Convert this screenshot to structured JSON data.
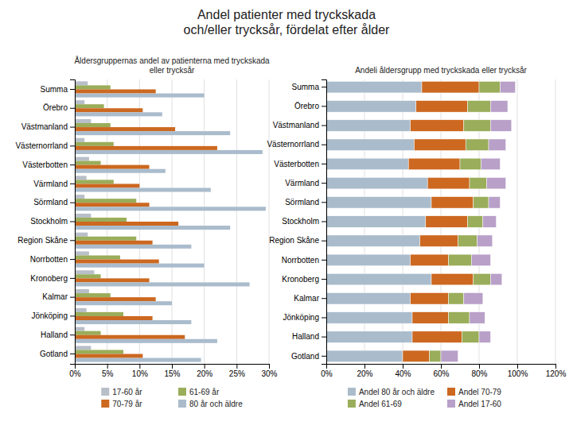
{
  "title": "Andel patienter med tryckskada\noch/eller trycksår, fördelat efter ålder",
  "chart_data": [
    {
      "type": "bar",
      "orientation": "horizontal",
      "grid": true,
      "legend": "bottom",
      "title": "Åldersgruppernas andel av patienterna med tryckskada\neller trycksår",
      "categories": [
        "Summa",
        "Örebro",
        "Västmanland",
        "Västernorrland",
        "Västerbotten",
        "Värmland",
        "Sörmland",
        "Stockholm",
        "Region Skåne",
        "Norrbotten",
        "Kronoberg",
        "Kalmar",
        "Jönköping",
        "Halland",
        "Gotland"
      ],
      "xlim": [
        0,
        30
      ],
      "xticks": [
        {
          "value": 0,
          "label": "0%"
        },
        {
          "value": 5,
          "label": "5%"
        },
        {
          "value": 10,
          "label": "10%"
        },
        {
          "value": 15,
          "label": "15%"
        },
        {
          "value": 20,
          "label": "20%"
        },
        {
          "value": 25,
          "label": "25%"
        },
        {
          "value": 30,
          "label": "30%"
        }
      ],
      "series": [
        {
          "name": "17-60 år",
          "color": "#b8bfc8",
          "values": [
            2.0,
            1.5,
            2.5,
            1.5,
            2.2,
            1.8,
            1.5,
            2.5,
            2.0,
            2.2,
            3.0,
            2.2,
            1.8,
            1.5,
            2.5
          ]
        },
        {
          "name": "61-69 år",
          "color": "#9aad5a",
          "values": [
            5.5,
            4.5,
            5.5,
            6.0,
            4.0,
            6.0,
            9.5,
            8.0,
            9.5,
            7.0,
            4.0,
            5.5,
            7.5,
            4.0,
            7.5
          ]
        },
        {
          "name": "70-79 år",
          "color": "#cc6820",
          "values": [
            12.5,
            10.5,
            15.5,
            22.0,
            11.5,
            10.0,
            11.5,
            16.0,
            12.0,
            13.0,
            11.5,
            12.5,
            12.0,
            17.0,
            10.5
          ]
        },
        {
          "name": "80 år och äldre",
          "color": "#aabccc",
          "values": [
            20.0,
            13.5,
            24.0,
            29.0,
            14.0,
            21.0,
            29.5,
            24.0,
            18.0,
            20.0,
            27.0,
            15.0,
            18.0,
            22.0,
            19.5
          ]
        }
      ]
    },
    {
      "type": "bar",
      "orientation": "horizontal",
      "stacked": true,
      "grid": true,
      "legend": "bottom",
      "title": "Andeli åldersgrupp med tryckskada eller trycksår",
      "categories": [
        "Summa",
        "Örebro",
        "Västmanland",
        "Västernorrland",
        "Västerbotten",
        "Värmland",
        "Sörmland",
        "Stockholm",
        "Region Skåne",
        "Norrbotten",
        "Kronoberg",
        "Kalmar",
        "Jönköping",
        "Halland",
        "Gotland"
      ],
      "xlim": [
        0,
        120
      ],
      "xticks": [
        {
          "value": 0,
          "label": "0%"
        },
        {
          "value": 20,
          "label": "20%"
        },
        {
          "value": 40,
          "label": "40%"
        },
        {
          "value": 60,
          "label": "60%"
        },
        {
          "value": 80,
          "label": "80%"
        },
        {
          "value": 100,
          "label": "100%"
        },
        {
          "value": 120,
          "label": "120%"
        }
      ],
      "series": [
        {
          "name": "Andel 80 år och äldre",
          "color": "#aabccc",
          "values": [
            50.0,
            47.0,
            44.0,
            46.0,
            43.0,
            53.0,
            55.0,
            52.0,
            49.0,
            44.0,
            55.0,
            44.0,
            45.0,
            45.0,
            40.0
          ]
        },
        {
          "name": "Andel 70-79",
          "color": "#cc6820",
          "values": [
            30.0,
            27.0,
            28.0,
            27.0,
            27.0,
            22.0,
            22.0,
            22.0,
            20.0,
            20.0,
            22.0,
            20.0,
            19.0,
            26.0,
            14.0
          ]
        },
        {
          "name": "Andel 61-69",
          "color": "#9aad5a",
          "values": [
            11.0,
            12.0,
            14.0,
            12.0,
            11.0,
            9.0,
            8.0,
            8.0,
            10.0,
            12.0,
            9.0,
            8.0,
            11.0,
            9.0,
            6.0
          ]
        },
        {
          "name": "Andel 17-60",
          "color": "#b8a0c8",
          "values": [
            8.0,
            9.0,
            11.0,
            9.0,
            10.0,
            10.0,
            6.0,
            7.0,
            8.0,
            10.0,
            6.0,
            10.0,
            8.0,
            6.0,
            9.0
          ]
        }
      ]
    }
  ]
}
